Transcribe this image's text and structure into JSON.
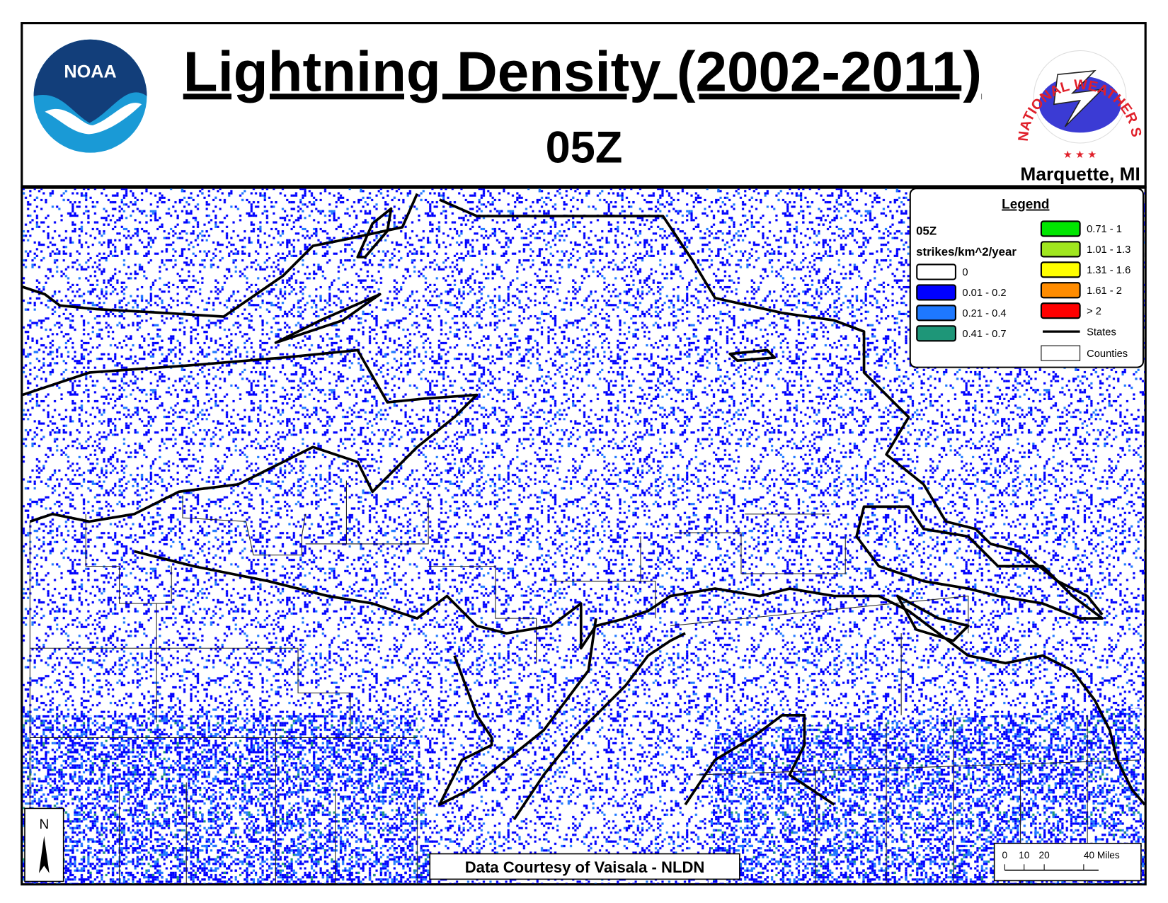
{
  "header": {
    "title": "Lightning Density (2002-2011)",
    "subtitle": "05Z",
    "location": "Marquette, MI"
  },
  "logos": {
    "noaa": "NOAA",
    "nws": "NATIONAL WEATHER SERVICE"
  },
  "legend": {
    "title": "Legend",
    "hour": "05Z",
    "units": "strikes/km^2/year",
    "items": [
      {
        "label": "0",
        "color": "#ffffff"
      },
      {
        "label": "0.01 - 0.2",
        "color": "#0000ff"
      },
      {
        "label": "0.21 - 0.4",
        "color": "#1e78ff"
      },
      {
        "label": "0.41 - 0.7",
        "color": "#1e9678"
      },
      {
        "label": "0.71 - 1",
        "color": "#00e600"
      },
      {
        "label": "1.01 - 1.3",
        "color": "#a0e61e"
      },
      {
        "label": "1.31 - 1.6",
        "color": "#ffff00"
      },
      {
        "label": "1.61 - 2",
        "color": "#ff8c00"
      },
      {
        "label": "> 2",
        "color": "#ff0000"
      }
    ],
    "states": "States",
    "counties": "Counties"
  },
  "north": "N",
  "scale": {
    "labels": [
      "0",
      "10",
      "20",
      "40 Miles"
    ]
  },
  "credit": "Data Courtesy of Vaisala - NLDN"
}
